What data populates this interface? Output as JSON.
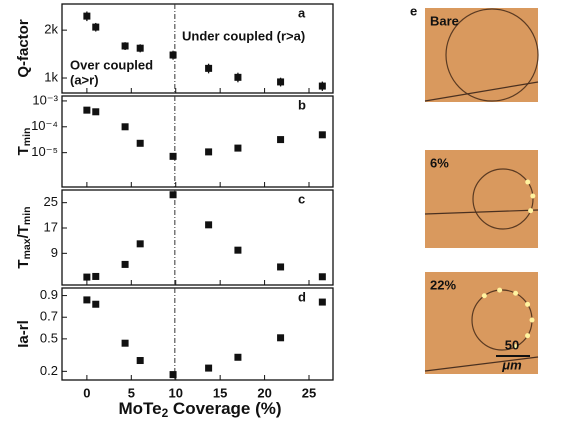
{
  "chart_data": [
    {
      "type": "scatter",
      "panel_label": "a",
      "ylabel_parts": [
        "Q-factor"
      ],
      "log_y": true,
      "x": [
        0,
        1,
        4.3,
        6,
        9.7,
        13.7,
        17,
        21.8,
        26.5
      ],
      "values": [
        2450,
        2090,
        1590,
        1540,
        1395,
        1150,
        1010,
        945,
        890
      ],
      "errors": [
        170,
        130,
        90,
        90,
        90,
        80,
        70,
        60,
        60
      ],
      "xlim": [
        -2.8,
        27.7
      ],
      "ylim": [
        805,
        2920
      ],
      "yticks": [
        {
          "value": 1000,
          "label": "1k"
        },
        {
          "value": 2000,
          "label": "2k"
        }
      ],
      "vline": 9.9,
      "color": "#111111",
      "annotations": [
        {
          "text": "Under coupled (r>a)",
          "color": "#2e9a2e"
        },
        {
          "text": "Over coupled",
          "color": "#2b2bd6"
        },
        {
          "text": "(a>r)",
          "color": "#2b2bd6"
        }
      ]
    },
    {
      "type": "scatter",
      "panel_label": "b",
      "ylabel_parts": [
        "T",
        "min"
      ],
      "log_y": true,
      "x": [
        0,
        1,
        4.3,
        6,
        9.7,
        13.7,
        17,
        21.8,
        26.5
      ],
      "values": [
        0.00044,
        0.00038,
        0.0001,
        2.3e-05,
        7.2e-06,
        1.07e-05,
        1.5e-05,
        3.2e-05,
        4.9e-05
      ],
      "xlim": [
        -2.8,
        27.7
      ],
      "ylim": [
        4.7e-07,
        0.00155
      ],
      "yticks": [
        {
          "value": 1e-05,
          "label": "10⁻⁵"
        },
        {
          "value": 0.0001,
          "label": "10⁻⁴"
        },
        {
          "value": 0.001,
          "label": "10⁻³"
        }
      ],
      "vline": 9.9,
      "color": "#111111"
    },
    {
      "type": "scatter",
      "panel_label": "c",
      "ylabel_parts": [
        "T",
        "max",
        "/T",
        "min"
      ],
      "log_y": false,
      "x": [
        0,
        1,
        4.3,
        6,
        9.7,
        13.7,
        17,
        21.8,
        26.5
      ],
      "values": [
        1.5,
        1.7,
        5.5,
        12,
        27.5,
        18,
        10,
        4.7,
        1.6
      ],
      "xlim": [
        -2.8,
        27.7
      ],
      "ylim": [
        -1,
        29
      ],
      "yticks": [
        9,
        17,
        25
      ],
      "vline": 9.9,
      "color": "#111111"
    },
    {
      "type": "scatter",
      "panel_label": "d",
      "ylabel_parts": [
        "Ia-rl"
      ],
      "log_y": false,
      "x": [
        0,
        1,
        4.3,
        6,
        9.7,
        13.7,
        17,
        21.8,
        26.5
      ],
      "values": [
        0.86,
        0.82,
        0.46,
        0.3,
        0.17,
        0.23,
        0.33,
        0.51,
        0.84
      ],
      "xlim": [
        -2.8,
        27.7
      ],
      "ylim": [
        0.12,
        0.97
      ],
      "yticks": [
        0.2,
        0.5,
        0.7,
        0.9
      ],
      "xticks": [
        0,
        5,
        10,
        15,
        20,
        25
      ],
      "xlabel_parts": [
        "MoTe",
        "2",
        " Coverage (%)"
      ],
      "vline": 9.9,
      "color": "#111111"
    }
  ],
  "micrographs": {
    "label": "e",
    "panels": [
      {
        "label": "Bare"
      },
      {
        "label": "6%"
      },
      {
        "label": "22%"
      }
    ],
    "scale_bar": [
      "50",
      "μm"
    ]
  }
}
